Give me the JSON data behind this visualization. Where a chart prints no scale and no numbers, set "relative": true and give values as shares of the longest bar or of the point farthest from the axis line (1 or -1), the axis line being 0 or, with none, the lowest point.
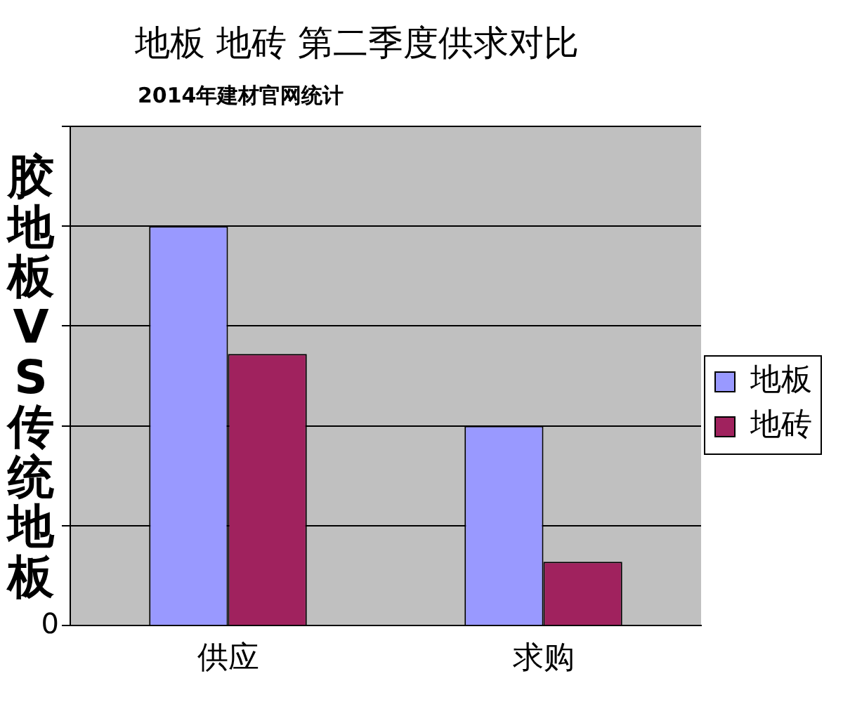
{
  "chart_data": {
    "type": "bar",
    "title": "地板 地砖 第二季度供求对比",
    "subtitle": "2014年建材官网统计",
    "ylabel": "胶地板VS传统地板",
    "categories": [
      "供应",
      "求购"
    ],
    "series": [
      {
        "name": "地板",
        "color": "#9999ff",
        "values": [
          1,
          0.5
        ]
      },
      {
        "name": "地砖",
        "color": "#a0225e",
        "values": [
          0.68,
          0.16
        ]
      }
    ],
    "relative": true,
    "grid": "y",
    "legend": "right",
    "annotations": [
      "0"
    ]
  }
}
